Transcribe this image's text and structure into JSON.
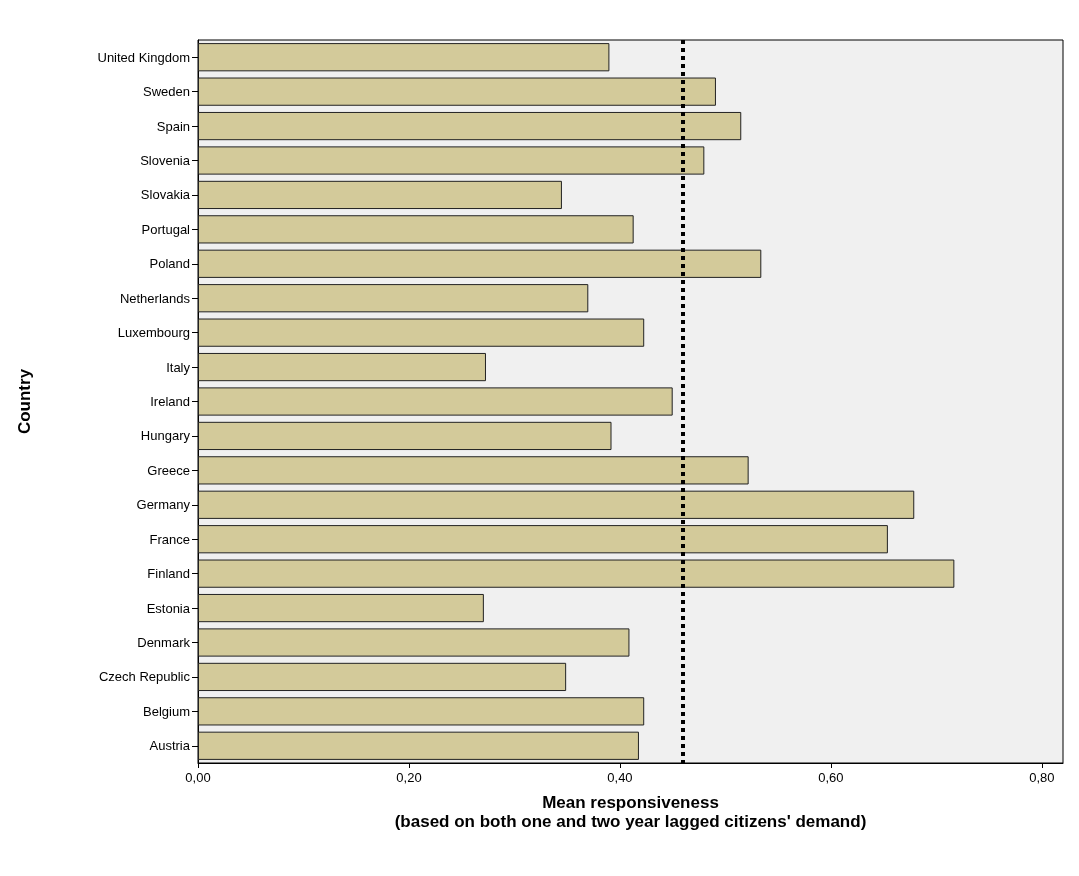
{
  "chart_data": {
    "type": "bar",
    "orientation": "horizontal",
    "xlabel": "Mean responsiveness\n(based on both one and two year lagged citizens' demand)",
    "ylabel": "Country",
    "categories": [
      "United Kingdom",
      "Sweden",
      "Spain",
      "Slovenia",
      "Slovakia",
      "Portugal",
      "Poland",
      "Netherlands",
      "Luxembourg",
      "Italy",
      "Ireland",
      "Hungary",
      "Greece",
      "Germany",
      "France",
      "Finland",
      "Estonia",
      "Denmark",
      "Czech Republic",
      "Belgium",
      "Austria"
    ],
    "values": [
      0.39,
      0.491,
      0.515,
      0.48,
      0.345,
      0.413,
      0.534,
      0.37,
      0.423,
      0.273,
      0.45,
      0.392,
      0.522,
      0.679,
      0.654,
      0.717,
      0.271,
      0.409,
      0.349,
      0.423,
      0.418
    ],
    "color": "#d3ca9a",
    "xlim": [
      0,
      0.82
    ],
    "xticks": [
      {
        "value": 0,
        "label": "0,00"
      },
      {
        "value": 0.2,
        "label": "0,20"
      },
      {
        "value": 0.4,
        "label": "0,40"
      },
      {
        "value": 0.6,
        "label": "0,60"
      },
      {
        "value": 0.8,
        "label": "0,80"
      }
    ],
    "ref_lines": [
      {
        "axis": "x",
        "value": 0.459,
        "color": "#000000",
        "line_style": "dashed"
      }
    ],
    "grid": false
  }
}
